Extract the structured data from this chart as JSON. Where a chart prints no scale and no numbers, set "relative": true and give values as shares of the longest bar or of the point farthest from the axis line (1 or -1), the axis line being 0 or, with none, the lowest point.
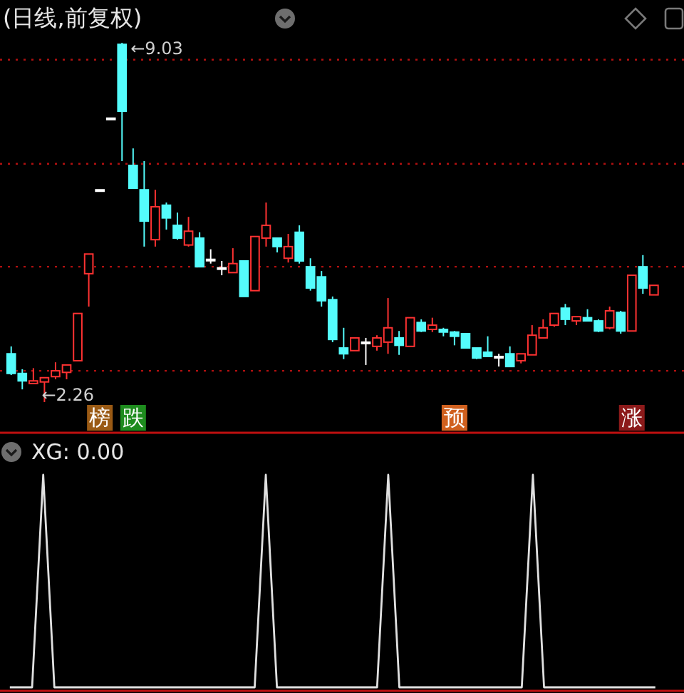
{
  "chart_data": [
    {
      "type": "candlestick",
      "title": "(日线,前复权)",
      "categories": [
        null,
        null,
        null,
        null,
        null,
        null,
        null,
        null,
        null,
        null,
        null,
        null,
        null,
        null,
        null,
        null,
        null,
        null,
        null,
        null,
        null,
        null,
        null,
        null,
        null,
        null,
        null,
        null,
        null,
        null,
        null,
        null,
        null,
        null,
        null,
        null,
        null,
        null,
        null,
        null,
        null,
        null,
        null,
        null,
        null,
        null,
        null,
        null,
        null,
        null,
        null,
        null,
        null,
        null,
        null,
        null,
        null,
        null,
        null
      ],
      "ohlc": [
        [
          3.17,
          3.31,
          2.77,
          2.8
        ],
        [
          2.8,
          2.88,
          2.5,
          2.66
        ],
        [
          2.61,
          2.9,
          2.61,
          2.66
        ],
        [
          2.64,
          2.72,
          2.26,
          2.72
        ],
        [
          2.74,
          3.01,
          2.69,
          2.85
        ],
        [
          2.82,
          2.96,
          2.69,
          2.96
        ],
        [
          3.04,
          3.93,
          3.04,
          3.93
        ],
        [
          4.68,
          5.05,
          4.06,
          5.05
        ],
        [
          6.26,
          6.26,
          6.26,
          6.26
        ],
        [
          7.61,
          7.61,
          7.61,
          7.61
        ],
        [
          9.0,
          9.03,
          6.8,
          7.74
        ],
        [
          6.72,
          7.04,
          6.29,
          6.29
        ],
        [
          6.26,
          6.8,
          5.19,
          5.67
        ],
        [
          5.32,
          6.26,
          5.19,
          5.94
        ],
        [
          5.97,
          6.02,
          5.51,
          5.73
        ],
        [
          5.59,
          5.83,
          5.32,
          5.35
        ],
        [
          5.22,
          5.75,
          5.19,
          5.48
        ],
        [
          5.35,
          5.46,
          4.81,
          4.81
        ],
        [
          4.95,
          5.14,
          4.87,
          4.95
        ],
        [
          4.79,
          4.92,
          4.65,
          4.79
        ],
        [
          4.7,
          5.16,
          4.7,
          4.87
        ],
        [
          4.92,
          4.92,
          4.25,
          4.25
        ],
        [
          4.36,
          5.38,
          4.36,
          5.38
        ],
        [
          5.35,
          6.02,
          5.19,
          5.59
        ],
        [
          5.35,
          5.35,
          5.08,
          5.19
        ],
        [
          4.97,
          5.43,
          4.89,
          5.19
        ],
        [
          5.46,
          5.59,
          4.87,
          4.92
        ],
        [
          4.81,
          4.97,
          4.36,
          4.41
        ],
        [
          4.62,
          4.73,
          4.06,
          4.17
        ],
        [
          4.19,
          4.25,
          3.39,
          3.44
        ],
        [
          3.28,
          3.66,
          3.07,
          3.17
        ],
        [
          3.23,
          3.47,
          3.23,
          3.47
        ],
        [
          3.39,
          3.47,
          2.96,
          3.39
        ],
        [
          3.31,
          3.52,
          3.23,
          3.47
        ],
        [
          3.39,
          4.22,
          3.17,
          3.66
        ],
        [
          3.47,
          3.6,
          3.15,
          3.33
        ],
        [
          3.31,
          3.85,
          3.31,
          3.85
        ],
        [
          3.76,
          3.82,
          3.58,
          3.6
        ],
        [
          3.63,
          3.85,
          3.58,
          3.71
        ],
        [
          3.63,
          3.66,
          3.5,
          3.58
        ],
        [
          3.58,
          3.6,
          3.33,
          3.5
        ],
        [
          3.55,
          3.55,
          3.28,
          3.28
        ],
        [
          3.28,
          3.28,
          3.07,
          3.09
        ],
        [
          3.2,
          3.5,
          3.12,
          3.12
        ],
        [
          3.12,
          3.17,
          2.93,
          3.12
        ],
        [
          3.17,
          3.31,
          2.93,
          2.93
        ],
        [
          3.04,
          3.17,
          2.99,
          3.17
        ],
        [
          3.15,
          3.71,
          3.15,
          3.52
        ],
        [
          3.47,
          3.82,
          3.47,
          3.66
        ],
        [
          3.71,
          3.93,
          3.68,
          3.93
        ],
        [
          4.03,
          4.11,
          3.71,
          3.82
        ],
        [
          3.79,
          3.87,
          3.71,
          3.87
        ],
        [
          3.85,
          4.01,
          3.79,
          3.79
        ],
        [
          3.79,
          3.82,
          3.58,
          3.6
        ],
        [
          3.66,
          4.06,
          3.63,
          3.98
        ],
        [
          3.95,
          3.98,
          3.55,
          3.6
        ],
        [
          3.6,
          4.65,
          3.6,
          4.65
        ],
        [
          4.81,
          5.03,
          4.3,
          4.41
        ],
        [
          4.28,
          4.46,
          4.28,
          4.46
        ]
      ],
      "colors": [
        "#54fcfc",
        "#54fcfc",
        "#ff3232",
        "#ff3232",
        "#ff3232",
        "#ff3232",
        "#ff3232",
        "#ff3232",
        "#ffffff",
        "#ffffff",
        "#54fcfc",
        "#54fcfc",
        "#54fcfc",
        "#ff3232",
        "#54fcfc",
        "#54fcfc",
        "#ff3232",
        "#54fcfc",
        "#ffffff",
        "#ffffff",
        "#ff3232",
        "#54fcfc",
        "#ff3232",
        "#ff3232",
        "#54fcfc",
        "#ff3232",
        "#54fcfc",
        "#54fcfc",
        "#54fcfc",
        "#54fcfc",
        "#54fcfc",
        "#ff3232",
        "#ffffff",
        "#ff3232",
        "#ff3232",
        "#54fcfc",
        "#ff3232",
        "#54fcfc",
        "#ff3232",
        "#54fcfc",
        "#54fcfc",
        "#54fcfc",
        "#54fcfc",
        "#54fcfc",
        "#ffffff",
        "#54fcfc",
        "#ff3232",
        "#ff3232",
        "#ff3232",
        "#ff3232",
        "#54fcfc",
        "#ff3232",
        "#54fcfc",
        "#54fcfc",
        "#ff3232",
        "#54fcfc",
        "#ff3232",
        "#54fcfc",
        "#ff3232"
      ],
      "yticks": [
        {
          "value": 2.85,
          "label": null
        },
        {
          "value": 4.81,
          "label": null
        },
        {
          "value": 6.75,
          "label": null
        },
        {
          "value": 8.71,
          "label": null
        }
      ],
      "grid": "y",
      "annotations": [
        "←9.03",
        "←2.26",
        "榜",
        "跌",
        "预",
        "涨"
      ]
    },
    {
      "type": "line",
      "title": "XG: 0.00",
      "relative": true,
      "categories": [
        null,
        null,
        null,
        null,
        null,
        null,
        null,
        null,
        null,
        null,
        null,
        null,
        null,
        null,
        null,
        null,
        null,
        null,
        null,
        null,
        null,
        null,
        null,
        null,
        null,
        null,
        null,
        null,
        null,
        null,
        null,
        null,
        null,
        null,
        null,
        null,
        null,
        null,
        null,
        null,
        null,
        null,
        null,
        null,
        null,
        null,
        null,
        null,
        null,
        null,
        null,
        null,
        null,
        null,
        null,
        null,
        null,
        null,
        null
      ],
      "series": [
        {
          "color": "#e0e0e0",
          "values": [
            0,
            0,
            0,
            1,
            0,
            0,
            0,
            0,
            0,
            0,
            0,
            0,
            0,
            0,
            0,
            0,
            0,
            0,
            0,
            0,
            0,
            0,
            0,
            1,
            0,
            0,
            0,
            0,
            0,
            0,
            0,
            0,
            0,
            0,
            1,
            0,
            0,
            0,
            0,
            0,
            0,
            0,
            0,
            0,
            0,
            0,
            0,
            1,
            0,
            0,
            0,
            0,
            0,
            0,
            0,
            0,
            0,
            0,
            0
          ]
        }
      ]
    }
  ]
}
